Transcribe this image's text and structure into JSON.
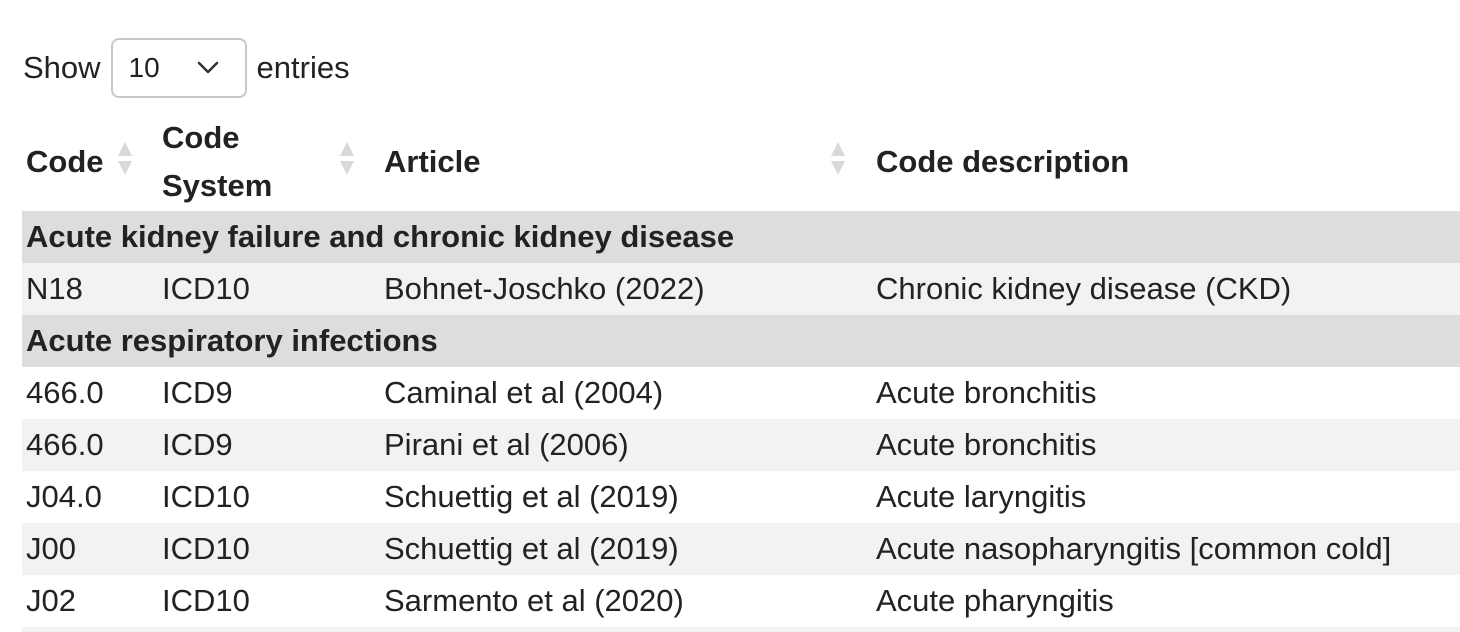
{
  "length_control": {
    "prefix": "Show",
    "selected": "10",
    "suffix": "entries"
  },
  "columns": [
    {
      "line1": "Code",
      "line2": ""
    },
    {
      "line1": "Code",
      "line2": "System"
    },
    {
      "line1": "Article",
      "line2": ""
    },
    {
      "line1": "Code description",
      "line2": ""
    }
  ],
  "groups": [
    {
      "title": "Acute kidney failure and chronic kidney disease",
      "rows": [
        {
          "code": "N18",
          "system": "ICD10",
          "article": "Bohnet-Joschko (2022)",
          "description": "Chronic kidney disease (CKD)"
        }
      ]
    },
    {
      "title": "Acute respiratory infections",
      "rows": [
        {
          "code": "466.0",
          "system": "ICD9",
          "article": "Caminal et al (2004)",
          "description": "Acute bronchitis"
        },
        {
          "code": "466.0",
          "system": "ICD9",
          "article": "Pirani et al (2006)",
          "description": "Acute bronchitis"
        },
        {
          "code": "J04.0",
          "system": "ICD10",
          "article": "Schuettig et al (2019)",
          "description": "Acute laryngitis"
        },
        {
          "code": "J00",
          "system": "ICD10",
          "article": "Schuettig et al (2019)",
          "description": "Acute nasopharyngitis [common cold]"
        },
        {
          "code": "J02",
          "system": "ICD10",
          "article": "Sarmento et al (2020)",
          "description": "Acute pharyngitis"
        }
      ]
    }
  ]
}
